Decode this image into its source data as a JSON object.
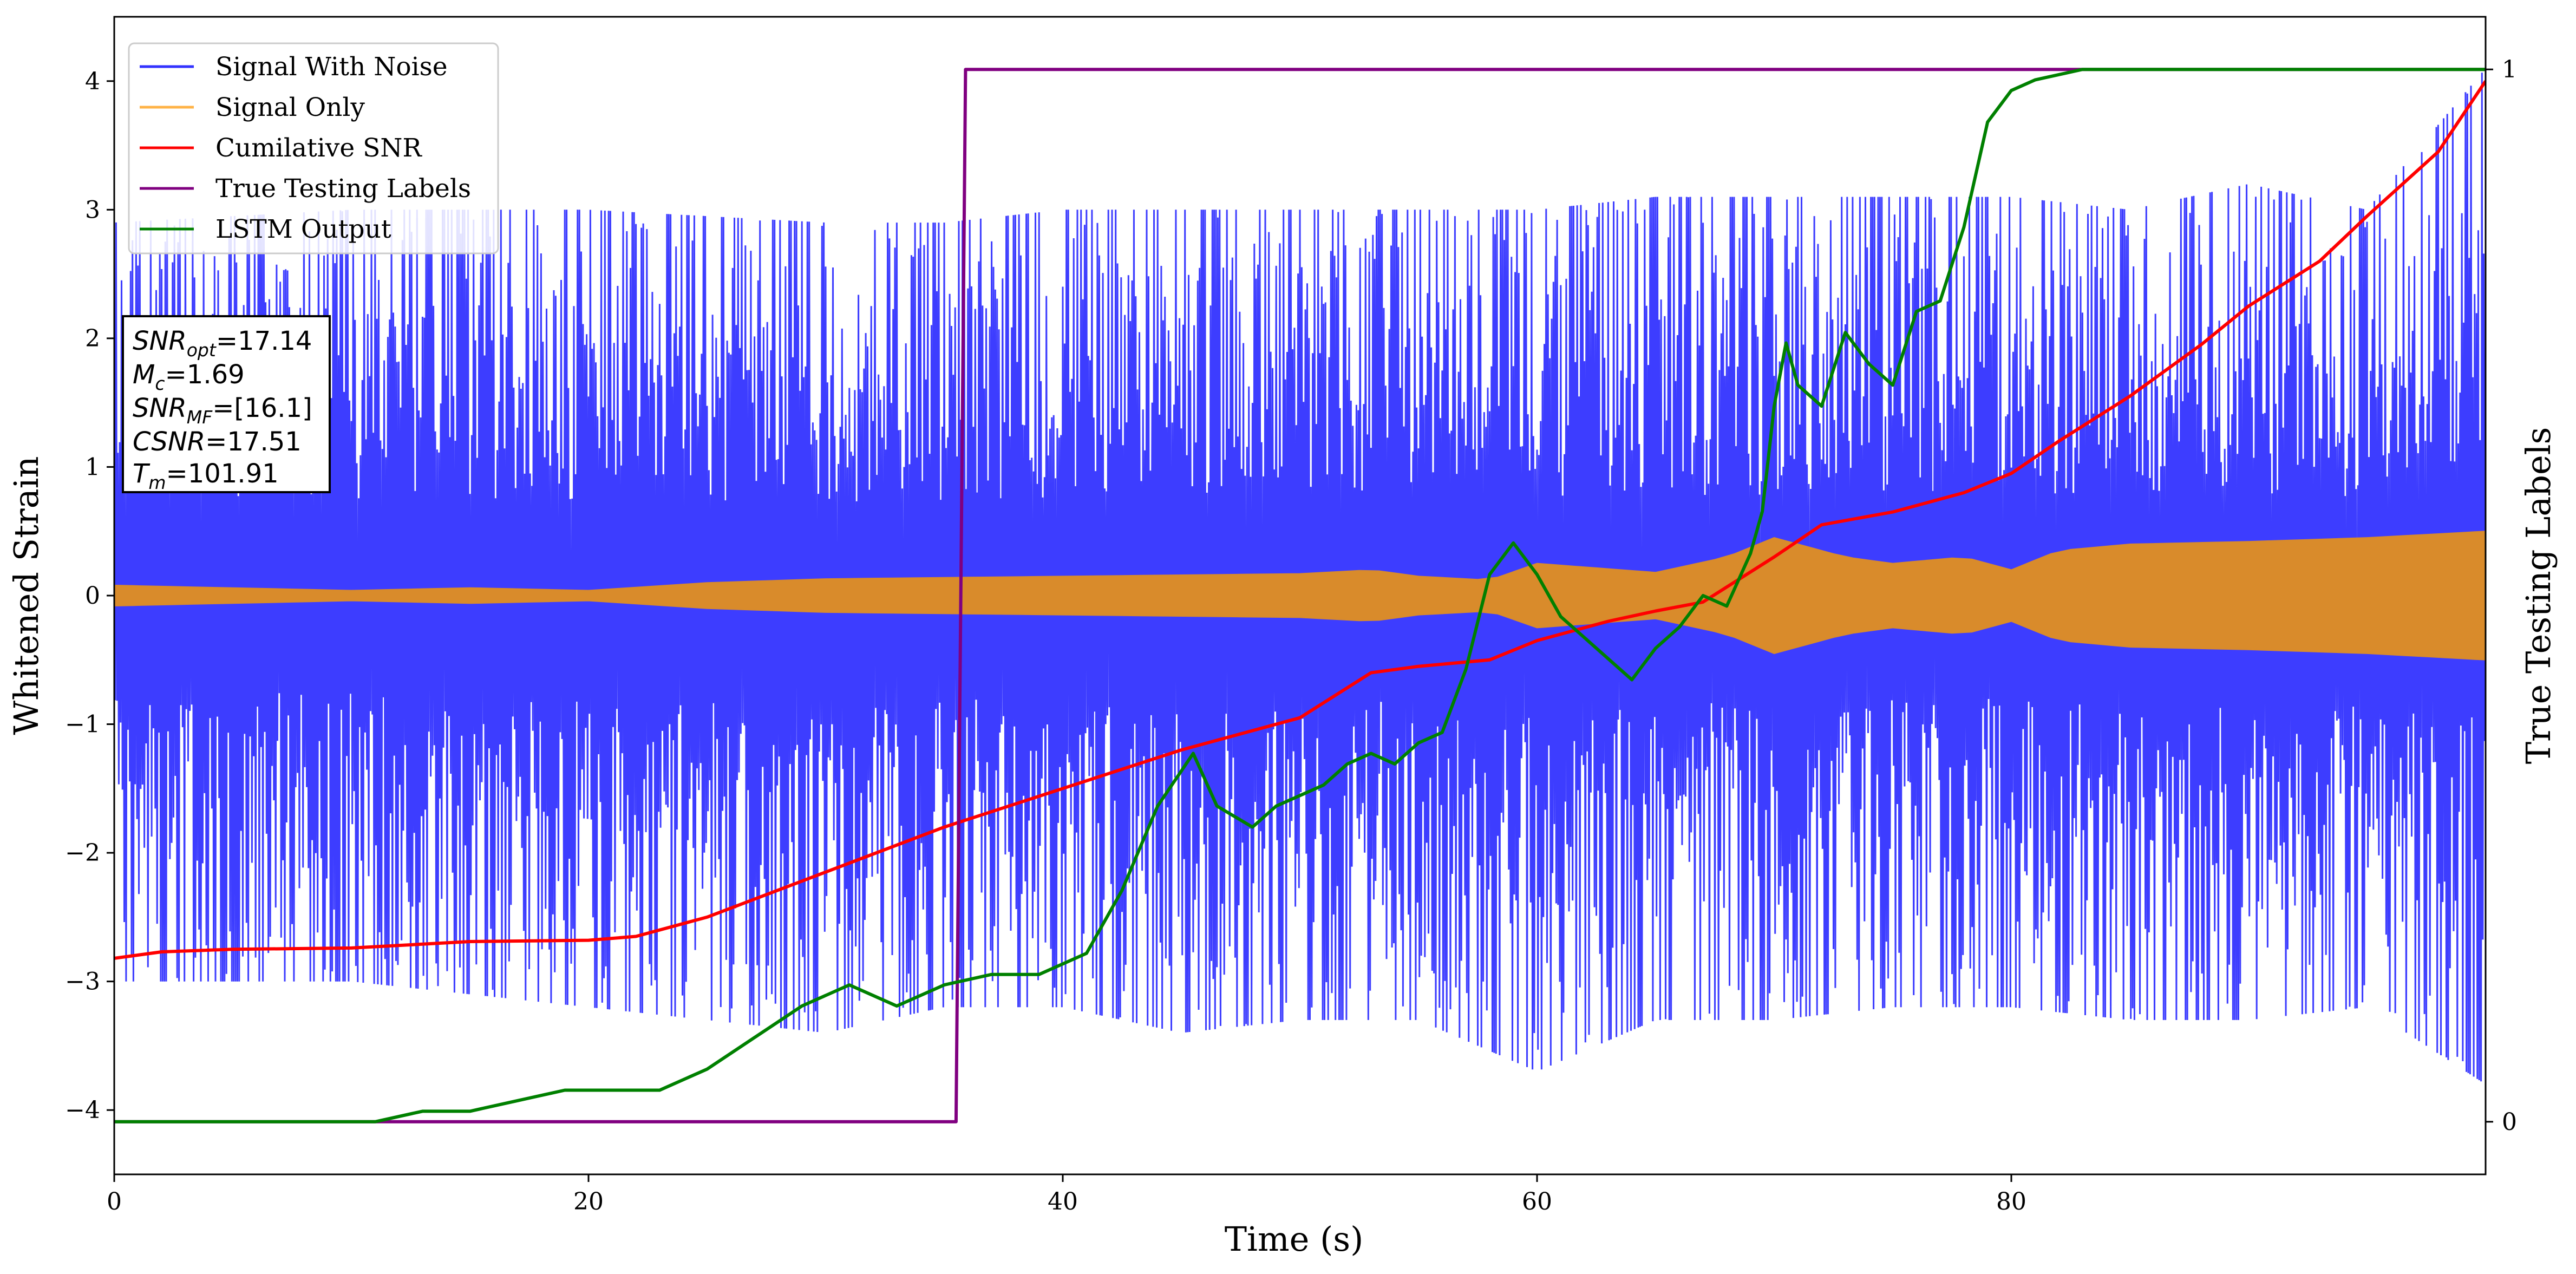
{
  "chart_data": {
    "type": "line",
    "xlabel": "Time (s)",
    "ylabel": "Whitened Strain",
    "y2label": "True Testing Labels",
    "xlim": [
      0,
      100
    ],
    "ylim": [
      -4.5,
      4.5
    ],
    "y2lim": [
      -0.05,
      1.05
    ],
    "xticks": [
      0,
      20,
      40,
      60,
      80
    ],
    "yticks": [
      -4,
      -3,
      -2,
      -1,
      0,
      1,
      2,
      3,
      4
    ],
    "y2ticks": [
      0,
      1
    ],
    "grid": false,
    "legend_position": "top-left",
    "legend": [
      "Signal With Noise",
      "Signal Only",
      "Cumilative SNR",
      "True Testing Labels",
      "LSTM Output"
    ],
    "info_box": {
      "snr_opt": "=17.14",
      "mc": "=1.69",
      "snr_mf": "=[16.1]",
      "csnr": "=17.51",
      "tm": "=101.91"
    },
    "series": [
      {
        "name": "Signal With Noise",
        "color": "#3333ff",
        "envelope_time": [
          0,
          10,
          20,
          30,
          35,
          40,
          45,
          50,
          55,
          60,
          65,
          70,
          75,
          80,
          85,
          90,
          95,
          100
        ],
        "envelope_upper": [
          2.9,
          3.0,
          3.0,
          2.9,
          2.9,
          3.0,
          3.0,
          3.0,
          3.0,
          3.0,
          3.1,
          3.1,
          3.1,
          3.1,
          3.0,
          3.2,
          3.0,
          4.1
        ],
        "envelope_lower": [
          -3.0,
          -3.0,
          -3.2,
          -3.4,
          -3.2,
          -3.2,
          -3.4,
          -3.3,
          -3.3,
          -3.7,
          -3.3,
          -3.3,
          -3.2,
          -3.2,
          -3.3,
          -3.3,
          -3.2,
          -3.8
        ]
      },
      {
        "name": "Signal Only",
        "color": "#d98b2b",
        "amplitude_time": [
          0,
          5,
          10,
          15,
          20,
          25,
          30,
          35,
          40,
          45,
          50,
          53,
          55,
          58,
          60,
          65,
          68,
          70,
          73,
          75,
          78,
          80,
          82,
          85,
          90,
          95,
          100
        ],
        "amplitude": [
          0.08,
          0.06,
          0.04,
          0.06,
          0.04,
          0.1,
          0.13,
          0.14,
          0.15,
          0.16,
          0.17,
          0.2,
          0.15,
          0.12,
          0.25,
          0.18,
          0.3,
          0.45,
          0.3,
          0.25,
          0.3,
          0.2,
          0.35,
          0.4,
          0.42,
          0.45,
          0.5
        ]
      },
      {
        "name": "Cumilative SNR",
        "color": "#ff0000",
        "x": [
          0,
          2,
          5,
          10,
          15,
          20,
          22,
          25,
          30,
          35,
          40,
          45,
          50,
          53,
          55,
          58,
          60,
          63,
          65,
          67,
          70,
          72,
          75,
          78,
          80,
          82,
          85,
          88,
          90,
          93,
          95,
          98,
          100
        ],
        "y": [
          -2.82,
          -2.77,
          -2.75,
          -2.74,
          -2.69,
          -2.68,
          -2.65,
          -2.5,
          -2.15,
          -1.8,
          -1.5,
          -1.2,
          -0.95,
          -0.6,
          -0.55,
          -0.5,
          -0.35,
          -0.2,
          -0.12,
          -0.05,
          0.3,
          0.55,
          0.65,
          0.8,
          0.95,
          1.2,
          1.55,
          1.95,
          2.25,
          2.6,
          2.95,
          3.45,
          4.0
        ]
      },
      {
        "name": "True Testing Labels",
        "color": "#800080",
        "axis": "right",
        "x": [
          0,
          35.5,
          35.9,
          100
        ],
        "y": [
          0,
          0,
          1,
          1
        ]
      },
      {
        "name": "LSTM Output",
        "color": "#008000",
        "axis": "right",
        "x": [
          0,
          11,
          13,
          15,
          17,
          19,
          21,
          23,
          25,
          27,
          29,
          31,
          33,
          35,
          37,
          39,
          41,
          42.5,
          44,
          45.5,
          46.5,
          48,
          49,
          51,
          52,
          53,
          54,
          55,
          56,
          57,
          58,
          59,
          60,
          60.5,
          61,
          62,
          63,
          64,
          65,
          66,
          67,
          68,
          69,
          69.5,
          70,
          70.5,
          71,
          72,
          73,
          74,
          75,
          76,
          77,
          78,
          79,
          80,
          81,
          83,
          85,
          90,
          95,
          100
        ],
        "y": [
          0,
          0,
          0.01,
          0.01,
          0.02,
          0.03,
          0.03,
          0.03,
          0.05,
          0.08,
          0.11,
          0.13,
          0.11,
          0.13,
          0.14,
          0.14,
          0.16,
          0.22,
          0.3,
          0.35,
          0.3,
          0.28,
          0.3,
          0.32,
          0.34,
          0.35,
          0.34,
          0.36,
          0.37,
          0.43,
          0.52,
          0.55,
          0.52,
          0.5,
          0.48,
          0.46,
          0.44,
          0.42,
          0.45,
          0.47,
          0.5,
          0.49,
          0.54,
          0.58,
          0.68,
          0.74,
          0.7,
          0.68,
          0.75,
          0.72,
          0.7,
          0.77,
          0.78,
          0.85,
          0.95,
          0.98,
          0.99,
          1.0,
          1.0,
          1.0,
          1.0,
          1.0
        ]
      }
    ]
  }
}
